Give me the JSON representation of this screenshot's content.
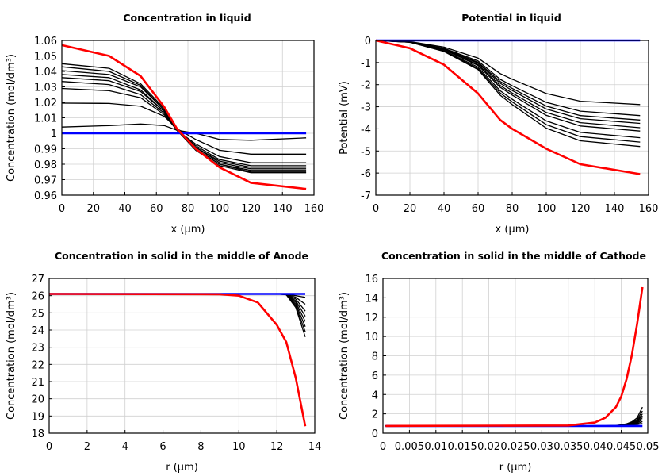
{
  "colors": {
    "final": "#ff0000",
    "initial": "#0000ff",
    "intermediate": "#000000",
    "grid": "#d0d0d0"
  },
  "chart_data": [
    {
      "type": "line",
      "title": "Concentration in liquid",
      "xlabel": "x (µm)",
      "ylabel": "Concentration (mol/dm³)",
      "xlim": [
        0,
        160
      ],
      "ylim": [
        0.96,
        1.06
      ],
      "grid": true,
      "xticks": [
        "0",
        "20",
        "40",
        "60",
        "80",
        "100",
        "120",
        "140",
        "160"
      ],
      "yticks": [
        "0.96",
        "0.97",
        "0.98",
        "0.99",
        "1",
        "1.01",
        "1.02",
        "1.03",
        "1.04",
        "1.05",
        "1.06"
      ],
      "x": [
        0,
        30,
        50,
        65,
        73,
        85,
        100,
        120,
        155
      ],
      "series": [
        {
          "color": "#000000",
          "values": [
            1.004,
            1.005,
            1.006,
            1.005,
            1.002,
            1.0,
            0.996,
            0.9955,
            0.997
          ]
        },
        {
          "color": "#000000",
          "values": [
            1.0195,
            1.0193,
            1.0175,
            1.011,
            1.003,
            0.996,
            0.989,
            0.9865,
            0.9865
          ]
        },
        {
          "color": "#000000",
          "values": [
            1.029,
            1.0275,
            1.023,
            1.012,
            1.002,
            0.993,
            0.985,
            0.981,
            0.981
          ]
        },
        {
          "color": "#000000",
          "values": [
            1.0335,
            1.0315,
            1.025,
            1.013,
            1.002,
            0.992,
            0.983,
            0.979,
            0.979
          ]
        },
        {
          "color": "#000000",
          "values": [
            1.036,
            1.034,
            1.027,
            1.014,
            1.002,
            0.991,
            0.982,
            0.978,
            0.978
          ]
        },
        {
          "color": "#000000",
          "values": [
            1.038,
            1.036,
            1.028,
            1.014,
            1.002,
            0.991,
            0.981,
            0.977,
            0.977
          ]
        },
        {
          "color": "#000000",
          "values": [
            1.0405,
            1.038,
            1.03,
            1.015,
            1.002,
            0.99,
            0.98,
            0.976,
            0.976
          ]
        },
        {
          "color": "#000000",
          "values": [
            1.043,
            1.04,
            1.031,
            1.015,
            1.002,
            0.99,
            0.98,
            0.975,
            0.975
          ]
        },
        {
          "color": "#000000",
          "values": [
            1.045,
            1.042,
            1.032,
            1.016,
            1.002,
            0.989,
            0.979,
            0.9745,
            0.9745
          ]
        },
        {
          "color": "#0000ff",
          "values": [
            1,
            1,
            1,
            1,
            1,
            1,
            1,
            1,
            1
          ]
        },
        {
          "color": "#ff0000",
          "values": [
            1.057,
            1.05,
            1.037,
            1.017,
            1.003,
            0.99,
            0.978,
            0.968,
            0.964
          ]
        }
      ]
    },
    {
      "type": "line",
      "title": "Potential in liquid",
      "xlabel": "x (µm)",
      "ylabel": "Potential (mV)",
      "xlim": [
        0,
        160
      ],
      "ylim": [
        -7,
        0
      ],
      "grid": true,
      "xticks": [
        "0",
        "20",
        "40",
        "60",
        "80",
        "100",
        "120",
        "140",
        "160"
      ],
      "yticks": [
        "-7",
        "-6",
        "-5",
        "-4",
        "-3",
        "-2",
        "-1",
        "0"
      ],
      "x": [
        0,
        20,
        40,
        60,
        73,
        80,
        100,
        120,
        155
      ],
      "series": [
        {
          "color": "#000000",
          "values": [
            0,
            -0.05,
            -0.3,
            -0.8,
            -1.5,
            -1.75,
            -2.4,
            -2.75,
            -2.9
          ]
        },
        {
          "color": "#000000",
          "values": [
            0,
            -0.06,
            -0.35,
            -0.93,
            -1.76,
            -2.05,
            -2.8,
            -3.2,
            -3.4
          ]
        },
        {
          "color": "#000000",
          "values": [
            0,
            -0.06,
            -0.37,
            -0.99,
            -1.86,
            -2.17,
            -2.97,
            -3.4,
            -3.6
          ]
        },
        {
          "color": "#000000",
          "values": [
            0,
            -0.07,
            -0.39,
            -1.03,
            -1.94,
            -2.26,
            -3.1,
            -3.54,
            -3.75
          ]
        },
        {
          "color": "#000000",
          "values": [
            0,
            -0.07,
            -0.41,
            -1.09,
            -2.04,
            -2.38,
            -3.26,
            -3.72,
            -3.95
          ]
        },
        {
          "color": "#000000",
          "values": [
            0,
            -0.07,
            -0.42,
            -1.13,
            -2.12,
            -2.47,
            -3.39,
            -3.87,
            -4.1
          ]
        },
        {
          "color": "#000000",
          "values": [
            0,
            -0.08,
            -0.46,
            -1.21,
            -2.28,
            -2.66,
            -3.64,
            -4.16,
            -4.4
          ]
        },
        {
          "color": "#000000",
          "values": [
            0,
            -0.08,
            -0.48,
            -1.27,
            -2.38,
            -2.78,
            -3.81,
            -4.35,
            -4.6
          ]
        },
        {
          "color": "#000000",
          "values": [
            0,
            -0.08,
            -0.5,
            -1.32,
            -2.48,
            -2.9,
            -3.97,
            -4.54,
            -4.8
          ]
        },
        {
          "color": "#0000ff",
          "values": [
            0,
            0,
            0,
            0,
            0,
            0,
            0,
            0,
            0
          ]
        },
        {
          "color": "#ff0000",
          "values": [
            0,
            -0.35,
            -1.1,
            -2.4,
            -3.6,
            -4.0,
            -4.9,
            -5.6,
            -6.05
          ]
        }
      ]
    },
    {
      "type": "line",
      "title": "Concentration in solid in the middle of Anode",
      "xlabel": "r (µm)",
      "ylabel": "Concentration (mol/dm³)",
      "xlim": [
        0,
        14
      ],
      "ylim": [
        18,
        27
      ],
      "grid": true,
      "xticks": [
        "0",
        "2",
        "4",
        "6",
        "8",
        "10",
        "12",
        "14"
      ],
      "yticks": [
        "18",
        "19",
        "20",
        "21",
        "22",
        "23",
        "24",
        "25",
        "26",
        "27"
      ],
      "x": [
        0,
        9,
        10,
        11,
        12,
        12.5,
        13,
        13.5
      ],
      "series": [
        {
          "color": "#000000",
          "values": [
            26.1,
            26.1,
            26.1,
            26.1,
            26.1,
            26.05,
            25.3,
            23.6
          ]
        },
        {
          "color": "#000000",
          "values": [
            26.1,
            26.1,
            26.1,
            26.1,
            26.1,
            26.06,
            25.4,
            23.9
          ]
        },
        {
          "color": "#000000",
          "values": [
            26.1,
            26.1,
            26.1,
            26.1,
            26.1,
            26.06,
            25.5,
            24.2
          ]
        },
        {
          "color": "#000000",
          "values": [
            26.1,
            26.1,
            26.1,
            26.1,
            26.1,
            26.07,
            25.6,
            24.5
          ]
        },
        {
          "color": "#000000",
          "values": [
            26.1,
            26.1,
            26.1,
            26.1,
            26.1,
            26.08,
            25.7,
            24.8
          ]
        },
        {
          "color": "#000000",
          "values": [
            26.1,
            26.1,
            26.1,
            26.1,
            26.1,
            26.08,
            25.8,
            25.1
          ]
        },
        {
          "color": "#000000",
          "values": [
            26.1,
            26.1,
            26.1,
            26.1,
            26.1,
            26.09,
            25.9,
            25.5
          ]
        },
        {
          "color": "#000000",
          "values": [
            26.1,
            26.1,
            26.1,
            26.1,
            26.1,
            26.1,
            26.0,
            25.9
          ]
        },
        {
          "color": "#0000ff",
          "values": [
            26.1,
            26.1,
            26.1,
            26.1,
            26.1,
            26.1,
            26.1,
            26.1
          ]
        },
        {
          "color": "#ff0000",
          "values": [
            26.1,
            26.08,
            26.0,
            25.6,
            24.3,
            23.3,
            21.2,
            18.4
          ]
        }
      ]
    },
    {
      "type": "line",
      "title": "Concentration in solid in the middle of Cathode",
      "xlabel": "r (µm)",
      "ylabel": "Concentration (mol/dm³)",
      "xlim": [
        0,
        0.05
      ],
      "ylim": [
        0,
        16
      ],
      "grid": true,
      "xticks": [
        "0",
        "0.005",
        "0.01",
        "0.015",
        "0.02",
        "0.025",
        "0.03",
        "0.035",
        "0.04",
        "0.045",
        "0.05"
      ],
      "yticks": [
        "0",
        "2",
        "4",
        "6",
        "8",
        "10",
        "12",
        "14",
        "16"
      ],
      "x": [
        0.0005,
        0.035,
        0.04,
        0.042,
        0.044,
        0.045,
        0.046,
        0.047,
        0.048,
        0.049
      ],
      "series": [
        {
          "color": "#000000",
          "values": [
            0.75,
            0.75,
            0.75,
            0.75,
            0.76,
            0.78,
            0.8,
            0.85,
            0.9,
            1.0
          ]
        },
        {
          "color": "#000000",
          "values": [
            0.75,
            0.75,
            0.75,
            0.75,
            0.76,
            0.78,
            0.82,
            0.88,
            0.98,
            1.2
          ]
        },
        {
          "color": "#000000",
          "values": [
            0.75,
            0.75,
            0.75,
            0.75,
            0.77,
            0.79,
            0.84,
            0.92,
            1.06,
            1.4
          ]
        },
        {
          "color": "#000000",
          "values": [
            0.75,
            0.75,
            0.75,
            0.76,
            0.77,
            0.8,
            0.86,
            0.96,
            1.14,
            1.6
          ]
        },
        {
          "color": "#000000",
          "values": [
            0.75,
            0.75,
            0.75,
            0.76,
            0.78,
            0.81,
            0.88,
            1.0,
            1.22,
            1.8
          ]
        },
        {
          "color": "#000000",
          "values": [
            0.75,
            0.75,
            0.75,
            0.76,
            0.78,
            0.82,
            0.9,
            1.05,
            1.3,
            2.0
          ]
        },
        {
          "color": "#000000",
          "values": [
            0.75,
            0.75,
            0.75,
            0.76,
            0.79,
            0.84,
            0.93,
            1.1,
            1.42,
            2.3
          ]
        },
        {
          "color": "#000000",
          "values": [
            0.75,
            0.75,
            0.75,
            0.77,
            0.8,
            0.86,
            0.97,
            1.18,
            1.58,
            2.7
          ]
        },
        {
          "color": "#0000ff",
          "values": [
            0.75,
            0.75,
            0.75,
            0.75,
            0.75,
            0.75,
            0.75,
            0.75,
            0.75,
            0.75
          ]
        },
        {
          "color": "#ff0000",
          "values": [
            0.75,
            0.8,
            1.1,
            1.6,
            2.7,
            3.8,
            5.6,
            8.1,
            11.3,
            15.1
          ]
        }
      ]
    }
  ]
}
